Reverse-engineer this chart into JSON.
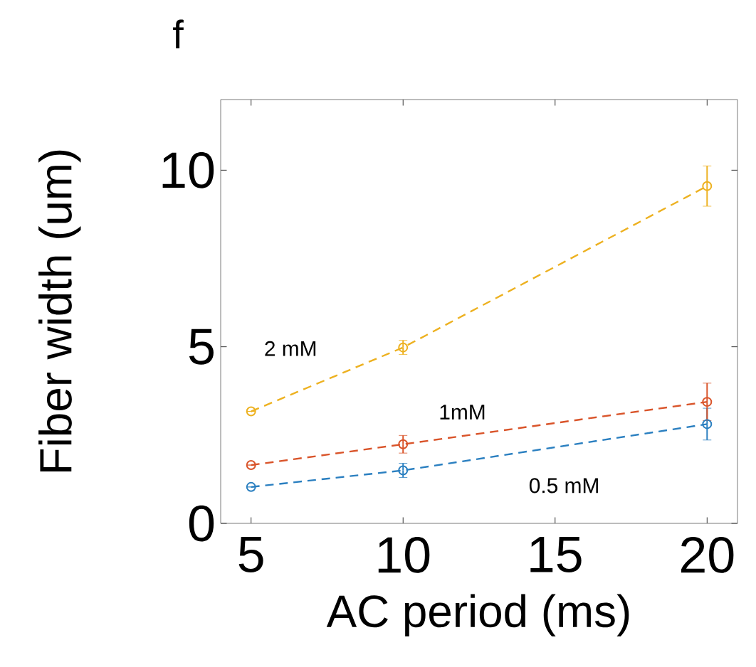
{
  "chart_data": {
    "type": "line",
    "title": "f",
    "xlabel": "AC period (ms)",
    "ylabel": "Fiber width (um)",
    "x": [
      5,
      10,
      20
    ],
    "series": [
      {
        "name": "0.5 mM",
        "color": "#2a7fc0",
        "values": [
          1.03,
          1.5,
          2.81
        ],
        "errors": [
          null,
          0.2,
          0.45
        ]
      },
      {
        "name": "1mM",
        "color": "#d9542a",
        "values": [
          1.65,
          2.24,
          3.44
        ],
        "errors": [
          null,
          0.25,
          0.53
        ]
      },
      {
        "name": "2 mM",
        "color": "#edb120",
        "values": [
          3.17,
          4.98,
          9.55
        ],
        "errors": [
          null,
          0.2,
          0.57
        ]
      }
    ],
    "xlim": [
      4,
      21
    ],
    "ylim": [
      0,
      12
    ],
    "xticks": [
      5,
      10,
      15,
      20
    ],
    "yticks": [
      0,
      5,
      10
    ],
    "marker": "circle",
    "line_style": "dashed"
  }
}
